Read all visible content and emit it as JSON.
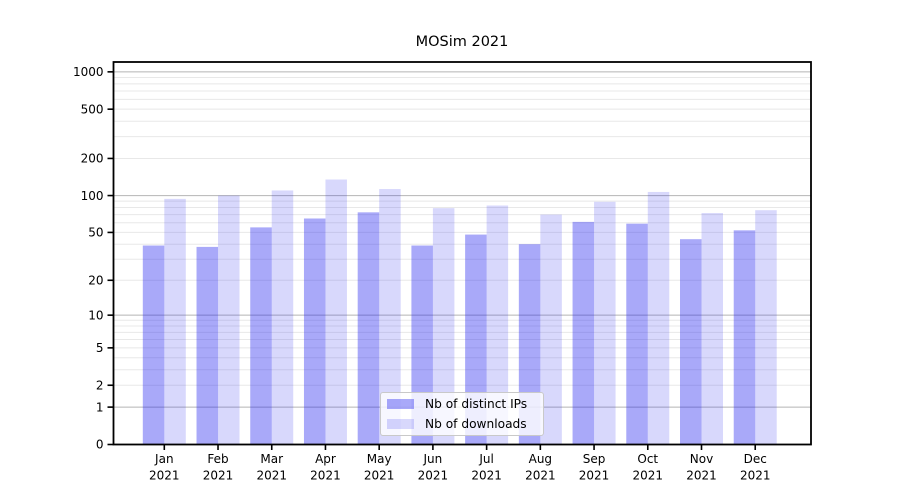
{
  "chart_data": {
    "type": "bar",
    "title": "MOSim 2021",
    "categories": [
      "Jan 2021",
      "Feb 2021",
      "Mar 2021",
      "Apr 2021",
      "May 2021",
      "Jun 2021",
      "Jul 2021",
      "Aug 2021",
      "Sep 2021",
      "Oct 2021",
      "Nov 2021",
      "Dec 2021"
    ],
    "series": [
      {
        "name": "Nb of distinct IPs",
        "color": "rgba(40,40,240,0.40)",
        "values": [
          39,
          38,
          55,
          65,
          73,
          39,
          48,
          40,
          61,
          59,
          44,
          52
        ]
      },
      {
        "name": "Nb of downloads",
        "color": "rgba(40,40,240,0.18)",
        "values": [
          94,
          100,
          110,
          135,
          113,
          79,
          83,
          70,
          89,
          107,
          72,
          76
        ]
      }
    ],
    "yscale": "log(value+1)",
    "yticks": [
      0,
      1,
      2,
      5,
      10,
      20,
      50,
      100,
      200,
      500,
      1000
    ],
    "ylim": [
      0,
      1200
    ],
    "grid": true,
    "legend_position": "lower center",
    "colors": {
      "major_gridline": "#b5b5b5",
      "minor_gridline": "#e8e8e8",
      "axis": "#000000",
      "text": "#000000"
    }
  }
}
